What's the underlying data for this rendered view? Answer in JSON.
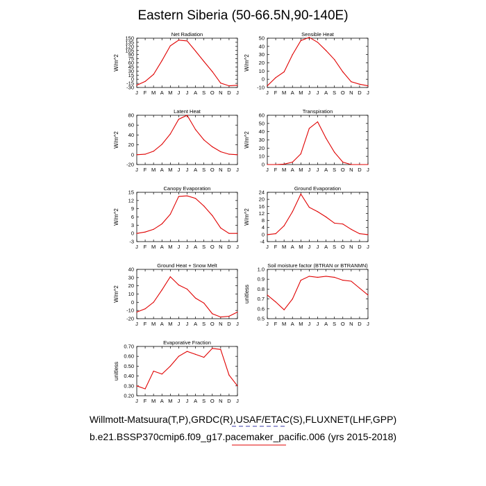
{
  "title": "Eastern Siberia (50-66.5N,90-140E)",
  "footer": {
    "obs_sources": "Willmott-Matsuura(T,P),GRDC(R),USAF/ETAC(S),FLUXNET(LHF,GPP)",
    "case_name": "b.e21.BSSP370cmip6.f09_g17.pacemaker_pacific.006 (yrs 2015-2018)"
  },
  "colors": {
    "model_line": "#e00000",
    "obs_dashes": "#3a3aa8",
    "case_underline": "#e00000"
  },
  "chart_data": [
    {
      "type": "line",
      "title": "Net Radiation",
      "ylabel": "W/m^2",
      "categories": [
        "J",
        "F",
        "M",
        "A",
        "M",
        "J",
        "J",
        "A",
        "S",
        "O",
        "N",
        "D",
        "J"
      ],
      "yticks": [
        -30,
        -15,
        0,
        15,
        30,
        45,
        60,
        75,
        90,
        105,
        120,
        135,
        150
      ],
      "ylim": [
        -30,
        150
      ],
      "values": [
        -22,
        -8,
        18,
        68,
        122,
        143,
        140,
        103,
        65,
        28,
        -14,
        -24,
        -22
      ]
    },
    {
      "type": "line",
      "title": "Sensible Heat",
      "ylabel": "W/m^2",
      "categories": [
        "J",
        "F",
        "M",
        "A",
        "M",
        "J",
        "J",
        "A",
        "S",
        "O",
        "N",
        "D",
        "J"
      ],
      "yticks": [
        -10,
        0,
        10,
        20,
        30,
        40,
        50
      ],
      "ylim": [
        -10,
        50
      ],
      "values": [
        -8,
        2,
        9,
        30,
        47,
        51,
        45,
        35,
        24,
        9,
        -3,
        -6,
        -8
      ]
    },
    {
      "type": "line",
      "title": "Latent Heat",
      "ylabel": "W/m^2",
      "categories": [
        "J",
        "F",
        "M",
        "A",
        "M",
        "J",
        "J",
        "A",
        "S",
        "O",
        "N",
        "D",
        "J"
      ],
      "yticks": [
        -20,
        0,
        20,
        40,
        60,
        80
      ],
      "ylim": [
        -20,
        80
      ],
      "values": [
        0,
        1,
        7,
        21,
        42,
        72,
        80,
        51,
        30,
        16,
        6,
        1,
        0
      ]
    },
    {
      "type": "line",
      "title": "Transpiration",
      "ylabel": "W/m^2",
      "categories": [
        "J",
        "F",
        "M",
        "A",
        "M",
        "J",
        "J",
        "A",
        "S",
        "O",
        "N",
        "D",
        "J"
      ],
      "yticks": [
        0,
        10,
        20,
        30,
        40,
        50,
        60
      ],
      "ylim": [
        0,
        60
      ],
      "values": [
        0,
        0,
        0.5,
        3,
        13,
        44,
        52,
        32,
        15,
        3,
        0,
        0,
        0
      ]
    },
    {
      "type": "line",
      "title": "Canopy Evaporation",
      "ylabel": "W/m^2",
      "categories": [
        "J",
        "F",
        "M",
        "A",
        "M",
        "J",
        "J",
        "A",
        "S",
        "O",
        "N",
        "D",
        "J"
      ],
      "yticks": [
        -3,
        0,
        3,
        6,
        9,
        12,
        15
      ],
      "ylim": [
        -3,
        15
      ],
      "values": [
        0,
        0.5,
        1.5,
        3.5,
        7,
        13.5,
        13.7,
        12.8,
        10,
        6.5,
        2,
        0,
        0
      ]
    },
    {
      "type": "line",
      "title": "Ground Evaporation",
      "ylabel": "W/m^2",
      "categories": [
        "J",
        "F",
        "M",
        "A",
        "M",
        "J",
        "J",
        "A",
        "S",
        "O",
        "N",
        "D",
        "J"
      ],
      "yticks": [
        -4,
        0,
        4,
        8,
        12,
        16,
        20,
        24
      ],
      "ylim": [
        -4,
        24
      ],
      "values": [
        0,
        0.5,
        5,
        13,
        23,
        15.5,
        13,
        10,
        6.5,
        6,
        3,
        0.5,
        0
      ]
    },
    {
      "type": "line",
      "title": "Ground Heat + Snow Melt",
      "ylabel": "W/m^2",
      "categories": [
        "J",
        "F",
        "M",
        "A",
        "M",
        "J",
        "J",
        "A",
        "S",
        "O",
        "N",
        "D",
        "J"
      ],
      "yticks": [
        -20,
        -10,
        0,
        10,
        20,
        30,
        40
      ],
      "ylim": [
        -20,
        40
      ],
      "values": [
        -12,
        -8,
        0,
        15,
        31,
        21,
        16,
        5,
        -1,
        -14,
        -18,
        -17,
        -12
      ]
    },
    {
      "type": "line",
      "title": "Soil moisture factor (BTRAN or BTRANMN)",
      "ylabel": "unitless",
      "categories": [
        "J",
        "F",
        "M",
        "A",
        "M",
        "J",
        "J",
        "A",
        "S",
        "O",
        "N",
        "D",
        "J"
      ],
      "yticks": [
        "0.5",
        "0.6",
        "0.7",
        "0.8",
        "0.9",
        "1.0"
      ],
      "ylim": [
        0.5,
        1.0
      ],
      "values": [
        0.74,
        0.67,
        0.59,
        0.7,
        0.89,
        0.93,
        0.92,
        0.93,
        0.92,
        0.89,
        0.88,
        0.81,
        0.74
      ]
    },
    {
      "type": "line",
      "title": "Evaporative Fraction",
      "ylabel": "unitless",
      "categories": [
        "J",
        "F",
        "M",
        "A",
        "M",
        "J",
        "J",
        "A",
        "S",
        "O",
        "N",
        "D",
        "J"
      ],
      "yticks": [
        "0.20",
        "0.30",
        "0.40",
        "0.50",
        "0.60",
        "0.70"
      ],
      "ylim": [
        0.2,
        0.7
      ],
      "values": [
        0.3,
        0.27,
        0.45,
        0.42,
        0.5,
        0.6,
        0.65,
        0.62,
        0.59,
        0.68,
        0.67,
        0.41,
        0.3
      ]
    }
  ]
}
